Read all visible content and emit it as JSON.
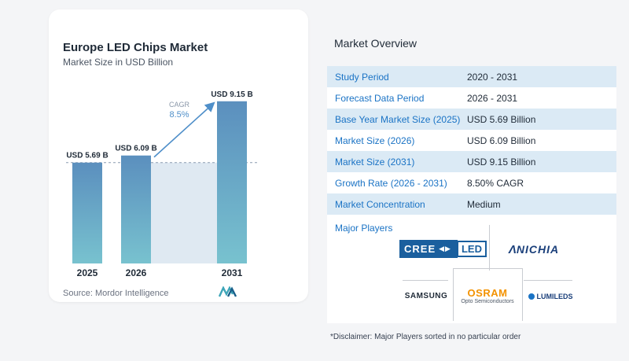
{
  "chart_card": {
    "title": "Europe LED Chips Market",
    "subtitle": "Market Size in USD Billion",
    "source": "Source: Mordor Intelligence"
  },
  "chart_data": {
    "type": "bar",
    "title": "Europe LED Chips Market",
    "subtitle": "Market Size in USD Billion",
    "categories": [
      "2025",
      "2026",
      "2031"
    ],
    "values": [
      5.69,
      6.09,
      9.15
    ],
    "data_labels": [
      "USD 5.69 B",
      "USD 6.09 B",
      "USD 9.15 B"
    ],
    "ylim": [
      0,
      10
    ],
    "annotation": {
      "label": "CAGR",
      "value": "8.5%"
    },
    "colors": {
      "bar_top": "#5b8fbe",
      "bar_bottom": "#78c2cf",
      "shade": "#dfe9f2",
      "arrow": "#4f8fc9",
      "cagr": "#4f8fc9"
    },
    "grid": false,
    "legend": "none"
  },
  "overview": {
    "title": "Market Overview",
    "rows": [
      {
        "label": "Study Period",
        "value": "2020 - 2031"
      },
      {
        "label": "Forecast Data Period",
        "value": "2026 - 2031"
      },
      {
        "label": "Base Year Market Size (2025)",
        "value": "USD 5.69 Billion"
      },
      {
        "label": "Market Size (2026)",
        "value": "USD 6.09 Billion"
      },
      {
        "label": "Market Size (2031)",
        "value": "USD 9.15 Billion"
      },
      {
        "label": "Growth Rate (2026 - 2031)",
        "value": "8.50% CAGR"
      },
      {
        "label": "Market Concentration",
        "value": "Medium"
      }
    ]
  },
  "players": {
    "title": "Major Players",
    "logos": {
      "cree": {
        "left": "CREE",
        "right": "LED"
      },
      "nichia": "NICHIA",
      "samsung": "SAMSUNG",
      "osram": {
        "main": "OSRAM",
        "sub": "Opto Semiconductors"
      },
      "lumileds": "LUMILEDS"
    }
  },
  "disclaimer": "*Disclaimer: Major Players sorted in no particular order"
}
